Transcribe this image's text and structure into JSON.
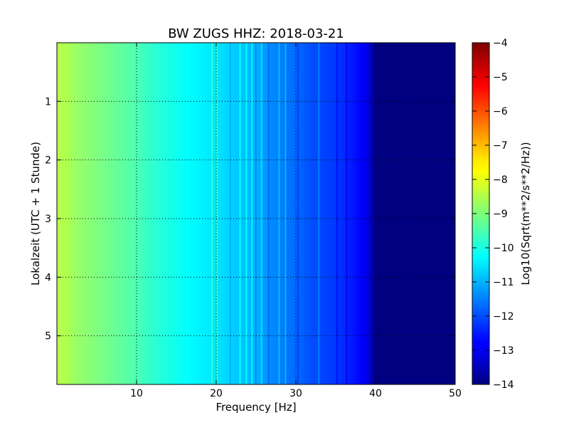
{
  "chart_data": {
    "type": "heatmap",
    "title": "BW ZUGS HHZ: 2018-03-21",
    "xlabel": "Frequency [Hz]",
    "ylabel": "Lokalzeit (UTC + 1 Stunde)",
    "xlim": [
      0,
      50
    ],
    "ylim": [
      0,
      5.83
    ],
    "y_inverted": true,
    "xticks": [
      10,
      20,
      30,
      40,
      50
    ],
    "yticks": [
      1,
      2,
      3,
      4,
      5
    ],
    "grid": true,
    "colorbar": {
      "label": "Log10(Sqrt(m**2/s**2/Hz))",
      "range": [
        -14,
        -4
      ],
      "ticks": [
        -4,
        -5,
        -6,
        -7,
        -8,
        -9,
        -10,
        -11,
        -12,
        -13,
        -14
      ],
      "colormap": "jet"
    },
    "frequency_profile": {
      "frequency_hz": [
        0,
        1,
        2,
        3,
        5,
        7,
        10,
        12,
        15,
        17,
        20,
        22,
        25,
        27,
        30,
        32,
        35,
        37,
        38,
        39,
        40,
        45,
        50
      ],
      "log10_amplitude": [
        -8.5,
        -8.5,
        -8.7,
        -8.8,
        -9.0,
        -9.2,
        -9.5,
        -9.8,
        -10.1,
        -10.3,
        -10.5,
        -10.7,
        -11.0,
        -11.4,
        -11.7,
        -12.0,
        -12.2,
        -12.5,
        -12.7,
        -13.0,
        -14.0,
        -14.0,
        -14.0
      ]
    },
    "bright_lines_hz": [
      19.4,
      20.0,
      22.9,
      23.7,
      24.4,
      25.6,
      27.8,
      28.6,
      32.8
    ],
    "dark_lines_hz": [
      21.7,
      24.9,
      26.5,
      30.2,
      35.1,
      36.3
    ]
  }
}
